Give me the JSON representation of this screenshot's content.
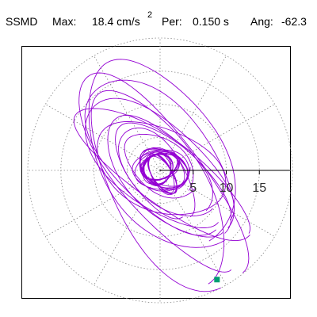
{
  "header": {
    "station": "SSMD",
    "max_label": "Max:",
    "max_value": "18.4 cm/s",
    "max_unit_exponent": "2",
    "period_label": "Per:",
    "period_value": "0.150 s",
    "angle_label": "Ang:",
    "angle_value": "-62.3"
  },
  "chart_data": {
    "type": "scatter",
    "title": "",
    "xlabel": "",
    "ylabel": "",
    "radial_rings": [
      5,
      10,
      15,
      20
    ],
    "radial_spokes_deg": [
      0,
      30,
      60,
      90,
      120,
      150,
      180,
      210,
      240,
      270,
      300,
      330
    ],
    "tick_labels": [
      "5",
      "10",
      "15"
    ],
    "xlim": [
      -19.2,
      19.2
    ],
    "ylim": [
      -19.2,
      19.2
    ],
    "grid": "dotted-polar",
    "trace_color": "#9400d3",
    "endpoint_color": "#009e73",
    "endpoint": {
      "x": 8.6,
      "y": -16.5
    },
    "orbits": [
      {
        "a": 3.8,
        "b": 2.6,
        "rot": -30,
        "cx": 0.5,
        "cy": 0.3,
        "turns": 4
      },
      {
        "a": 2.9,
        "b": 1.9,
        "rot": 20,
        "cx": 0.0,
        "cy": 0.6,
        "turns": 5
      },
      {
        "a": 3.3,
        "b": 1.5,
        "rot": -60,
        "cx": 0.3,
        "cy": -0.6,
        "turns": 4
      },
      {
        "a": 2.4,
        "b": 2.1,
        "rot": 70,
        "cx": -0.4,
        "cy": 0.2,
        "turns": 5
      },
      {
        "a": 4.2,
        "b": 3.0,
        "rot": 0,
        "cx": 0.2,
        "cy": 0.0,
        "turns": 2
      },
      {
        "a": 6.2,
        "b": 3.9,
        "rot": -38,
        "cx": 0.0,
        "cy": 1.0,
        "turns": 1
      },
      {
        "a": 9.0,
        "b": 4.6,
        "rot": -42,
        "cx": 0.5,
        "cy": 0.0,
        "turns": 1
      },
      {
        "a": 11.5,
        "b": 5.2,
        "rot": -45,
        "cx": 1.0,
        "cy": -1.5,
        "turns": 1
      },
      {
        "a": 13.0,
        "b": 6.2,
        "rot": -40,
        "cx": -0.5,
        "cy": 0.5,
        "turns": 1
      },
      {
        "a": 14.5,
        "b": 7.5,
        "rot": -48,
        "cx": 0.0,
        "cy": 2.0,
        "turns": 1
      },
      {
        "a": 16.5,
        "b": 5.0,
        "rot": -35,
        "cx": 0.5,
        "cy": 0.0,
        "turns": 1
      },
      {
        "a": 17.2,
        "b": 7.2,
        "rot": -60,
        "cx": 0.0,
        "cy": -2.5,
        "turns": 1
      },
      {
        "a": 15.5,
        "b": 9.0,
        "rot": -58,
        "cx": 0.0,
        "cy": 2.5,
        "turns": 1
      },
      {
        "a": 10.0,
        "b": 6.0,
        "rot": -25,
        "cx": 0.0,
        "cy": 0.0,
        "turns": 1
      },
      {
        "a": 18.2,
        "b": 6.0,
        "rot": -52,
        "cx": 0.0,
        "cy": -1.0,
        "turns": 1
      },
      {
        "a": 8.0,
        "b": 4.0,
        "rot": -55,
        "cx": -0.5,
        "cy": -0.5,
        "turns": 1
      }
    ]
  }
}
